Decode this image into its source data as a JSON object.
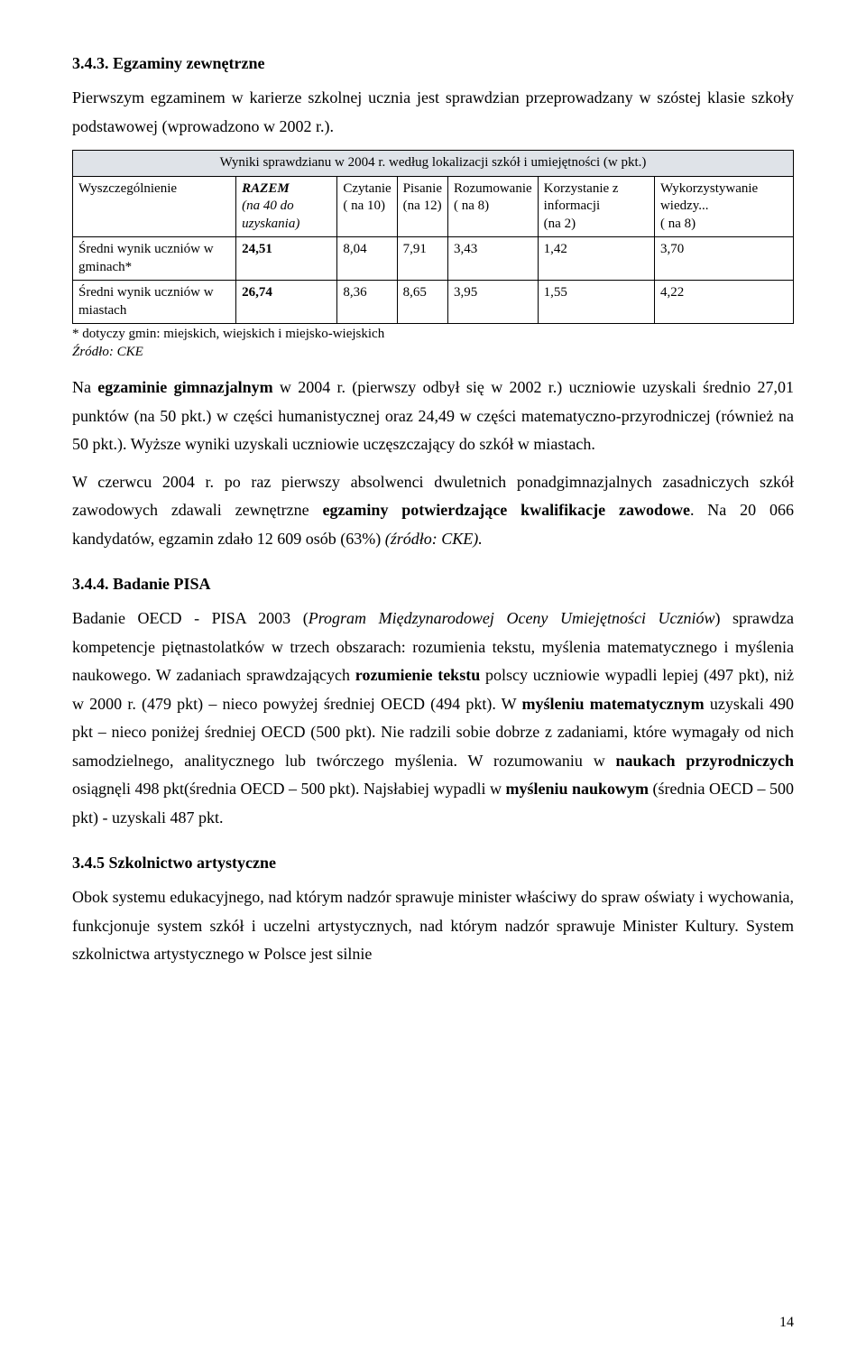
{
  "s343": {
    "heading": "3.4.3. Egzaminy zewnętrzne",
    "intro": "Pierwszym egzaminem w karierze szkolnej ucznia jest sprawdzian przeprowadzany w szóstej klasie szkoły podstawowej (wprowadzono w 2002 r.)."
  },
  "table": {
    "title": "Wyniki sprawdzianu w 2004 r. według lokalizacji szkół i umiejętności (w pkt.)",
    "columns": [
      "Wyszczególnienie",
      "RAZEM (na 40 do uzyskania)",
      "Czytanie ( na 10)",
      "Pisanie (na 12)",
      "Rozumowanie ( na 8)",
      "Korzystanie z informacji (na 2)",
      "Wykorzystywanie wiedzy... ( na 8)"
    ],
    "col0_label": "Wyszczególnienie",
    "col1_label_l1": "RAZEM",
    "col1_label_l2": "(na 40 do uzyskania)",
    "col2_label_l1": "Czytanie",
    "col2_label_l2": "( na 10)",
    "col3_label_l1": "Pisanie",
    "col3_label_l2": "(na 12)",
    "col4_label_l1": "Rozumowanie",
    "col4_label_l2": "( na 8)",
    "col5_label_l1": "Korzystanie z informacji",
    "col5_label_l2": "(na 2)",
    "col6_label_l1": "Wykorzystywanie wiedzy...",
    "col6_label_l2": "( na 8)",
    "rows": [
      {
        "label": "Średni wynik uczniów w gminach*",
        "razem": "24,51",
        "czytanie": "8,04",
        "pisanie": "7,91",
        "rozum": "3,43",
        "korz": "1,42",
        "wyk": "3,70"
      },
      {
        "label": "Średni wynik uczniów w miastach",
        "razem": "26,74",
        "czytanie": "8,36",
        "pisanie": "8,65",
        "rozum": "3,95",
        "korz": "1,55",
        "wyk": "4,22"
      }
    ],
    "note": "* dotyczy gmin: miejskich, wiejskich i miejsko-wiejskich",
    "source": "Źródło: CKE"
  },
  "after_table_p1_pre": "Na ",
  "after_table_p1_bold": "egzaminie gimnazjalnym",
  "after_table_p1_post": " w 2004 r. (pierwszy odbył się w 2002 r.) uczniowie uzyskali średnio 27,01 punktów (na 50 pkt.) w części humanistycznej oraz 24,49 w części matematyczno-przyrodniczej (również na 50 pkt.). Wyższe wyniki uzyskali uczniowie uczęszczający do szkół w miastach.",
  "after_table_p2_pre": "W czerwcu 2004 r. po raz pierwszy absolwenci dwuletnich ponadgimnazjalnych zasadniczych szkół zawodowych zdawali zewnętrzne ",
  "after_table_p2_bold": "egzaminy potwierdzające kwalifikacje zawodowe",
  "after_table_p2_post1": ". Na 20 066 kandydatów, egzamin zdało 12 609 osób (63%) ",
  "after_table_p2_italic": "(źródło: CKE).",
  "s344": {
    "heading": "3.4.4. Badanie PISA",
    "p_pre": "Badanie OECD - PISA 2003 (",
    "p_italic": "Program Międzynarodowej Oceny Umiejętności Uczniów",
    "p_mid1": ") sprawdza kompetencje piętnastolatków w trzech obszarach: rozumienia tekstu, myślenia matematycznego i myślenia naukowego. W zadaniach sprawdzających ",
    "bold1": "rozumienie tekstu",
    "p_mid2": " polscy uczniowie wypadli lepiej (497 pkt), niż w 2000 r. (479 pkt) – nieco powyżej średniej OECD (494 pkt). W ",
    "bold2": "myśleniu matematycznym",
    "p_mid3": " uzyskali 490 pkt – nieco poniżej średniej OECD (500 pkt). Nie radzili sobie dobrze z zadaniami, które wymagały od nich samodzielnego, analitycznego lub twórczego myślenia. W rozumowaniu w ",
    "bold3": "naukach przyrodniczych",
    "p_mid4": " osiągnęli 498 pkt(średnia OECD – 500 pkt). Najsłabiej wypadli w ",
    "bold4": "myśleniu naukowym",
    "p_end": " (średnia OECD – 500 pkt) - uzyskali 487 pkt."
  },
  "s345": {
    "heading": "3.4.5 Szkolnictwo artystyczne",
    "p": "Obok systemu edukacyjnego, nad którym nadzór sprawuje minister właściwy do spraw oświaty i wychowania, funkcjonuje system szkół i uczelni artystycznych, nad którym nadzór sprawuje Minister Kultury. System szkolnictwa artystycznego w Polsce jest silnie"
  },
  "page_number": "14"
}
